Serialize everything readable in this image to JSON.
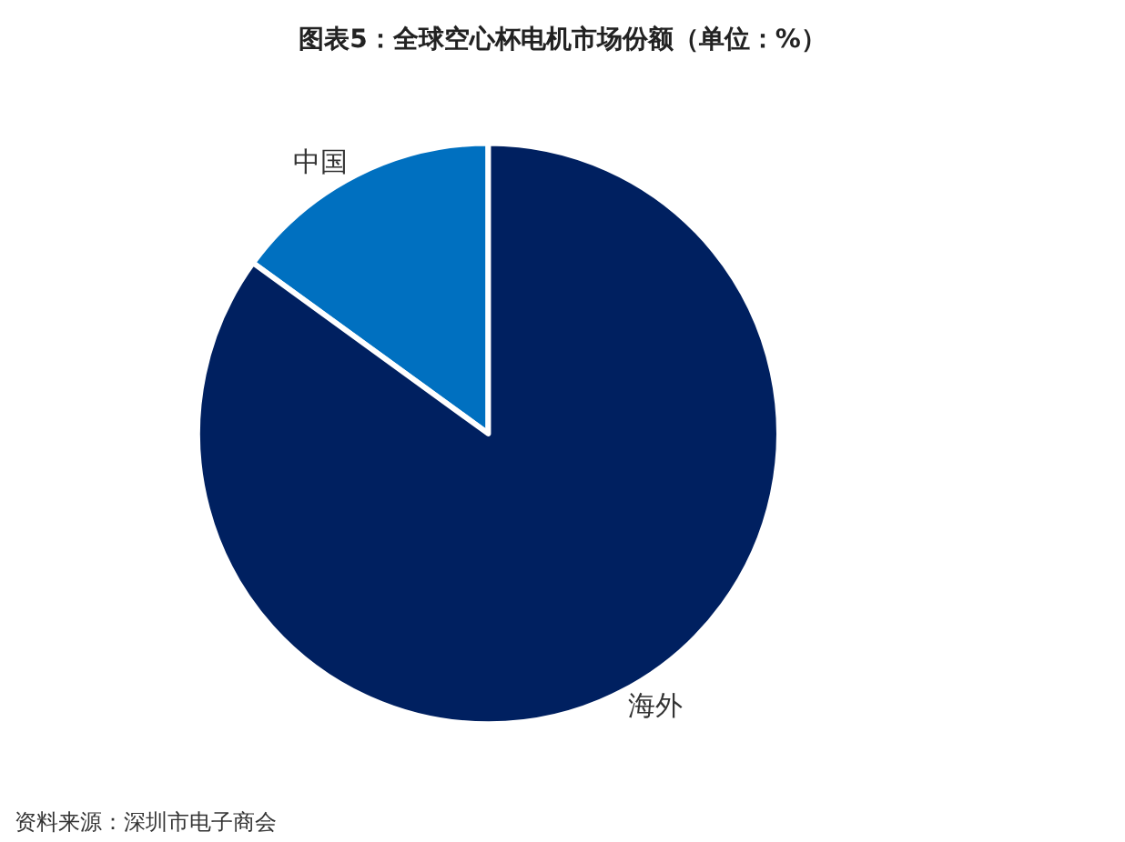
{
  "chart_data": {
    "type": "pie",
    "title": "图表5：全球空心杯电机市场份额（单位：%）",
    "categories": [
      "中国",
      "海外"
    ],
    "values": [
      15,
      85
    ],
    "colors": [
      "#0070c0",
      "#002060"
    ],
    "legend": false,
    "annotations": [
      "资料来源：深圳市电子商会"
    ]
  }
}
